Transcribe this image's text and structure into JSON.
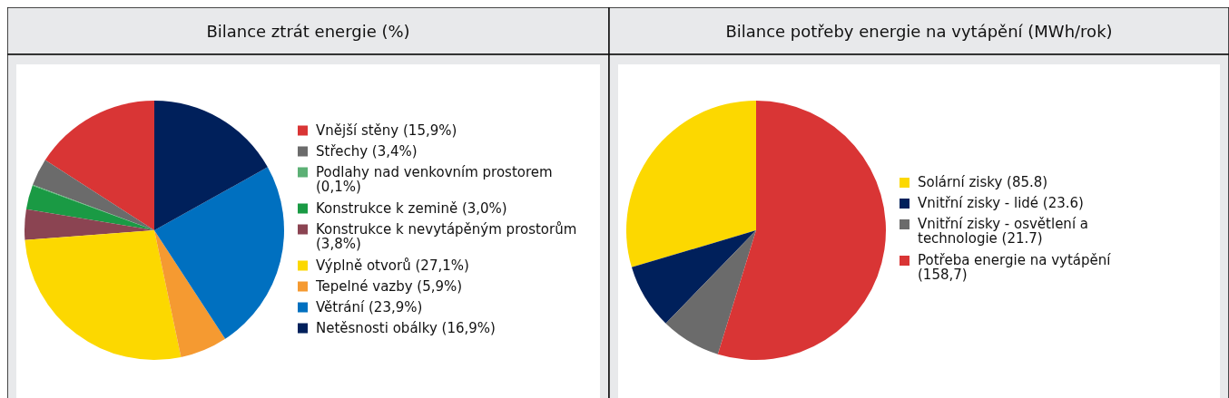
{
  "chart_data": [
    {
      "type": "pie",
      "title": "Bilance ztrát energie (%)",
      "legend": "right",
      "categories": [
        "Vnější stěny (15,9%)",
        "Střechy (3,4%)",
        "Podlahy nad venkovním prostorem (0,1%)",
        "Konstrukce k zemině (3,0%)",
        "Konstrukce k nevytápěným prostorům (3,8%)",
        "Výplně otvorů (27,1%)",
        "Tepelné vazby (5,9%)",
        "Větrání (23,9%)",
        "Netěsnosti obálky (16,9%)"
      ],
      "values": [
        15.9,
        3.4,
        0.1,
        3.0,
        3.8,
        27.1,
        5.9,
        23.9,
        16.9
      ],
      "colors": [
        "#d93535",
        "#6b6b6b",
        "#5cb075",
        "#1a9a44",
        "#8b4452",
        "#fcd800",
        "#f59a31",
        "#0070c0",
        "#00205b"
      ]
    },
    {
      "type": "pie",
      "title": "Bilance potřeby energie na vytápění (MWh/rok)",
      "legend": "right",
      "categories": [
        "Solární zisky (85.8)",
        "Vnitřní zisky - lidé (23.6)",
        "Vnitřní zisky - osvětlení a technologie (21.7)",
        "Potřeba energie na vytápění (158,7)"
      ],
      "values": [
        85.8,
        23.6,
        21.7,
        158.7
      ],
      "colors": [
        "#fcd800",
        "#00205b",
        "#6b6b6b",
        "#d93535"
      ]
    }
  ]
}
